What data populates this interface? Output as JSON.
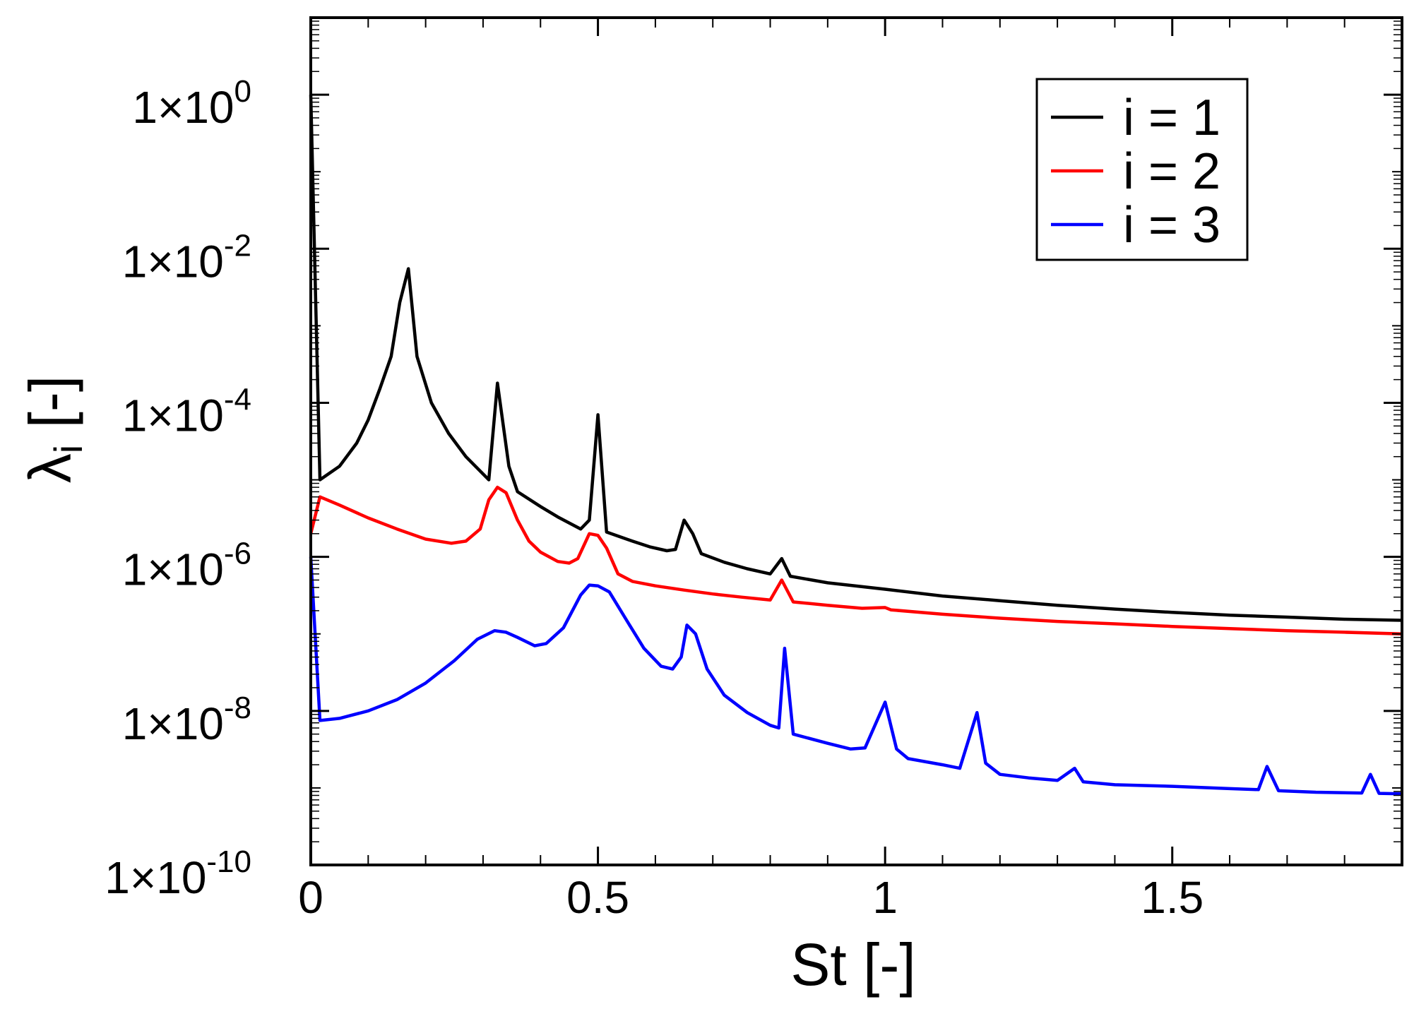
{
  "chart_data": {
    "type": "line",
    "title": "",
    "xlabel": "St [-]",
    "ylabel_main": "λ",
    "ylabel_sub": "i",
    "ylabel_unit": " [-]",
    "yscale": "log",
    "xlim": [
      0,
      1.9
    ],
    "ylim": [
      1e-10,
      10.0
    ],
    "x_ticks": [
      {
        "value": 0,
        "label": "0"
      },
      {
        "value": 0.5,
        "label": "0.5"
      },
      {
        "value": 1,
        "label": "1"
      },
      {
        "value": 1.5,
        "label": "1.5"
      }
    ],
    "y_ticks": [
      {
        "value": 1.0,
        "base": "1×10",
        "exp": "0"
      },
      {
        "value": 0.01,
        "base": "1×10",
        "exp": "-2"
      },
      {
        "value": 0.0001,
        "base": "1×10",
        "exp": "-4"
      },
      {
        "value": 1e-06,
        "base": "1×10",
        "exp": "-6"
      },
      {
        "value": 1e-08,
        "base": "1×10",
        "exp": "-8"
      },
      {
        "value": 1e-10,
        "base": "1×10",
        "exp": "-10"
      }
    ],
    "legend_position": "top-right",
    "grid": false,
    "series": [
      {
        "name": "i = 1",
        "color": "#000000",
        "points": [
          [
            0.0,
            1.0
          ],
          [
            0.016,
            1e-05
          ],
          [
            0.05,
            1.5e-05
          ],
          [
            0.08,
            3e-05
          ],
          [
            0.1,
            6e-05
          ],
          [
            0.12,
            0.00015
          ],
          [
            0.14,
            0.0004
          ],
          [
            0.155,
            0.002
          ],
          [
            0.17,
            0.0055
          ],
          [
            0.185,
            0.0004
          ],
          [
            0.21,
            0.0001
          ],
          [
            0.24,
            4e-05
          ],
          [
            0.27,
            2e-05
          ],
          [
            0.31,
            1e-05
          ],
          [
            0.325,
            0.00018
          ],
          [
            0.345,
            1.5e-05
          ],
          [
            0.36,
            7e-06
          ],
          [
            0.4,
            4.5e-06
          ],
          [
            0.43,
            3.3e-06
          ],
          [
            0.47,
            2.3e-06
          ],
          [
            0.485,
            3e-06
          ],
          [
            0.5,
            7e-05
          ],
          [
            0.515,
            2.1e-06
          ],
          [
            0.56,
            1.6e-06
          ],
          [
            0.59,
            1.35e-06
          ],
          [
            0.62,
            1.2e-06
          ],
          [
            0.635,
            1.25e-06
          ],
          [
            0.65,
            3e-06
          ],
          [
            0.665,
            2e-06
          ],
          [
            0.68,
            1.1e-06
          ],
          [
            0.72,
            8.5e-07
          ],
          [
            0.76,
            7e-07
          ],
          [
            0.8,
            6e-07
          ],
          [
            0.82,
            9.5e-07
          ],
          [
            0.835,
            5.6e-07
          ],
          [
            0.9,
            4.6e-07
          ],
          [
            1.0,
            3.8e-07
          ],
          [
            1.1,
            3.1e-07
          ],
          [
            1.2,
            2.7e-07
          ],
          [
            1.3,
            2.35e-07
          ],
          [
            1.4,
            2.1e-07
          ],
          [
            1.5,
            1.9e-07
          ],
          [
            1.6,
            1.75e-07
          ],
          [
            1.7,
            1.65e-07
          ],
          [
            1.8,
            1.55e-07
          ],
          [
            1.9,
            1.5e-07
          ]
        ]
      },
      {
        "name": "i = 2",
        "color": "#ff0000",
        "points": [
          [
            0.0,
            2e-06
          ],
          [
            0.016,
            6e-06
          ],
          [
            0.05,
            4.7e-06
          ],
          [
            0.1,
            3.2e-06
          ],
          [
            0.15,
            2.3e-06
          ],
          [
            0.2,
            1.7e-06
          ],
          [
            0.245,
            1.5e-06
          ],
          [
            0.27,
            1.6e-06
          ],
          [
            0.295,
            2.3e-06
          ],
          [
            0.31,
            5.5e-06
          ],
          [
            0.325,
            8e-06
          ],
          [
            0.34,
            6.8e-06
          ],
          [
            0.36,
            3e-06
          ],
          [
            0.38,
            1.6e-06
          ],
          [
            0.4,
            1.15e-06
          ],
          [
            0.43,
            8.7e-07
          ],
          [
            0.45,
            8.3e-07
          ],
          [
            0.465,
            9.5e-07
          ],
          [
            0.485,
            2e-06
          ],
          [
            0.5,
            1.9e-06
          ],
          [
            0.515,
            1.3e-06
          ],
          [
            0.535,
            6e-07
          ],
          [
            0.56,
            4.8e-07
          ],
          [
            0.6,
            4.2e-07
          ],
          [
            0.65,
            3.7e-07
          ],
          [
            0.7,
            3.3e-07
          ],
          [
            0.75,
            3e-07
          ],
          [
            0.8,
            2.75e-07
          ],
          [
            0.82,
            5e-07
          ],
          [
            0.84,
            2.6e-07
          ],
          [
            0.9,
            2.35e-07
          ],
          [
            0.96,
            2.15e-07
          ],
          [
            1.0,
            2.2e-07
          ],
          [
            1.01,
            2.05e-07
          ],
          [
            1.1,
            1.8e-07
          ],
          [
            1.2,
            1.6e-07
          ],
          [
            1.3,
            1.45e-07
          ],
          [
            1.4,
            1.35e-07
          ],
          [
            1.5,
            1.25e-07
          ],
          [
            1.6,
            1.17e-07
          ],
          [
            1.7,
            1.1e-07
          ],
          [
            1.8,
            1.05e-07
          ],
          [
            1.9,
            1e-07
          ]
        ]
      },
      {
        "name": "i = 3",
        "color": "#0000ff",
        "points": [
          [
            0.0,
            1e-06
          ],
          [
            0.016,
            7.5e-09
          ],
          [
            0.05,
            8e-09
          ],
          [
            0.1,
            1e-08
          ],
          [
            0.15,
            1.4e-08
          ],
          [
            0.2,
            2.3e-08
          ],
          [
            0.25,
            4.5e-08
          ],
          [
            0.29,
            8.5e-08
          ],
          [
            0.32,
            1.1e-07
          ],
          [
            0.34,
            1.05e-07
          ],
          [
            0.36,
            9e-08
          ],
          [
            0.39,
            7e-08
          ],
          [
            0.41,
            7.5e-08
          ],
          [
            0.44,
            1.2e-07
          ],
          [
            0.47,
            3.2e-07
          ],
          [
            0.485,
            4.3e-07
          ],
          [
            0.5,
            4.2e-07
          ],
          [
            0.52,
            3.5e-07
          ],
          [
            0.55,
            1.5e-07
          ],
          [
            0.58,
            6.5e-08
          ],
          [
            0.61,
            3.8e-08
          ],
          [
            0.63,
            3.5e-08
          ],
          [
            0.645,
            5e-08
          ],
          [
            0.655,
            1.3e-07
          ],
          [
            0.67,
            1e-07
          ],
          [
            0.69,
            3.5e-08
          ],
          [
            0.72,
            1.6e-08
          ],
          [
            0.76,
            9.5e-09
          ],
          [
            0.8,
            6.5e-09
          ],
          [
            0.815,
            6e-09
          ],
          [
            0.825,
            6.5e-08
          ],
          [
            0.84,
            5e-09
          ],
          [
            0.9,
            3.8e-09
          ],
          [
            0.94,
            3.2e-09
          ],
          [
            0.965,
            3.3e-09
          ],
          [
            1.0,
            1.3e-08
          ],
          [
            1.02,
            3.2e-09
          ],
          [
            1.04,
            2.4e-09
          ],
          [
            1.1,
            2e-09
          ],
          [
            1.13,
            1.8e-09
          ],
          [
            1.16,
            9.5e-09
          ],
          [
            1.175,
            2.1e-09
          ],
          [
            1.2,
            1.5e-09
          ],
          [
            1.25,
            1.35e-09
          ],
          [
            1.3,
            1.25e-09
          ],
          [
            1.33,
            1.8e-09
          ],
          [
            1.345,
            1.2e-09
          ],
          [
            1.4,
            1.1e-09
          ],
          [
            1.5,
            1.05e-09
          ],
          [
            1.6,
            9.8e-10
          ],
          [
            1.65,
            9.5e-10
          ],
          [
            1.665,
            1.9e-09
          ],
          [
            1.685,
            9.2e-10
          ],
          [
            1.75,
            8.8e-10
          ],
          [
            1.83,
            8.6e-10
          ],
          [
            1.845,
            1.5e-09
          ],
          [
            1.86,
            8.5e-10
          ],
          [
            1.9,
            8.4e-10
          ]
        ]
      }
    ]
  }
}
